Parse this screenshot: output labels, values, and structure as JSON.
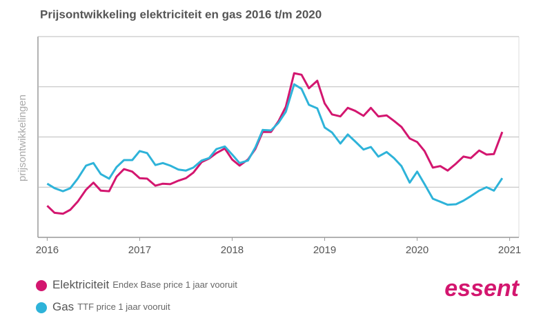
{
  "chart_data": {
    "type": "line",
    "title": "Prijsontwikkeling elektriciteit en gas 2016 t/m 2020",
    "ylabel": "prijsontwikkelingen",
    "brand": "essent",
    "x": [
      2016,
      2016.08,
      2016.17,
      2016.25,
      2016.33,
      2016.42,
      2016.5,
      2016.58,
      2016.67,
      2016.75,
      2016.83,
      2016.92,
      2017,
      2017.08,
      2017.17,
      2017.25,
      2017.33,
      2017.42,
      2017.5,
      2017.58,
      2017.67,
      2017.75,
      2017.83,
      2017.92,
      2018,
      2018.08,
      2018.17,
      2018.25,
      2018.33,
      2018.42,
      2018.5,
      2018.58,
      2018.67,
      2018.75,
      2018.83,
      2018.92,
      2019,
      2019.08,
      2019.17,
      2019.25,
      2019.33,
      2019.42,
      2019.5,
      2019.58,
      2019.67,
      2019.75,
      2019.83,
      2019.92,
      2020,
      2020.08,
      2020.17,
      2020.25,
      2020.33,
      2020.42,
      2020.5,
      2020.58,
      2020.67,
      2020.75,
      2020.83,
      2020.92
    ],
    "series": [
      {
        "name": "Elektriciteit",
        "description": "Endex Base price 1 jaar vooruit",
        "color": "#d3166f",
        "values": [
          0.63,
          0.49,
          0.47,
          0.55,
          0.71,
          0.95,
          1.09,
          0.93,
          0.92,
          1.21,
          1.36,
          1.31,
          1.18,
          1.17,
          1.03,
          1.07,
          1.06,
          1.13,
          1.18,
          1.29,
          1.5,
          1.57,
          1.68,
          1.77,
          1.55,
          1.43,
          1.55,
          1.76,
          2.1,
          2.1,
          2.31,
          2.6,
          3.27,
          3.24,
          2.97,
          3.12,
          2.67,
          2.45,
          2.41,
          2.58,
          2.52,
          2.42,
          2.58,
          2.41,
          2.43,
          2.32,
          2.2,
          1.97,
          1.9,
          1.72,
          1.39,
          1.42,
          1.33,
          1.47,
          1.61,
          1.58,
          1.73,
          1.65,
          1.66,
          2.1
        ]
      },
      {
        "name": "Gas",
        "description": "TTF price 1 jaar vooruit",
        "color": "#2eb3d9",
        "values": [
          1.07,
          0.98,
          0.92,
          0.98,
          1.17,
          1.43,
          1.48,
          1.26,
          1.17,
          1.4,
          1.54,
          1.54,
          1.72,
          1.68,
          1.44,
          1.48,
          1.43,
          1.35,
          1.33,
          1.39,
          1.53,
          1.58,
          1.76,
          1.81,
          1.65,
          1.48,
          1.53,
          1.79,
          2.14,
          2.13,
          2.28,
          2.5,
          3.05,
          2.96,
          2.64,
          2.57,
          2.19,
          2.09,
          1.87,
          2.05,
          1.91,
          1.75,
          1.8,
          1.61,
          1.7,
          1.58,
          1.42,
          1.09,
          1.31,
          1.06,
          0.77,
          0.71,
          0.65,
          0.66,
          0.73,
          0.82,
          0.93,
          1.0,
          0.93,
          1.18
        ]
      }
    ],
    "xlim": [
      2015.9,
      2021.1
    ],
    "xticks": [
      2016,
      2017,
      2018,
      2019,
      2020,
      2021
    ],
    "ylim": [
      0,
      4
    ],
    "yticks": [
      0,
      1,
      2,
      3,
      4
    ],
    "grid": true
  }
}
